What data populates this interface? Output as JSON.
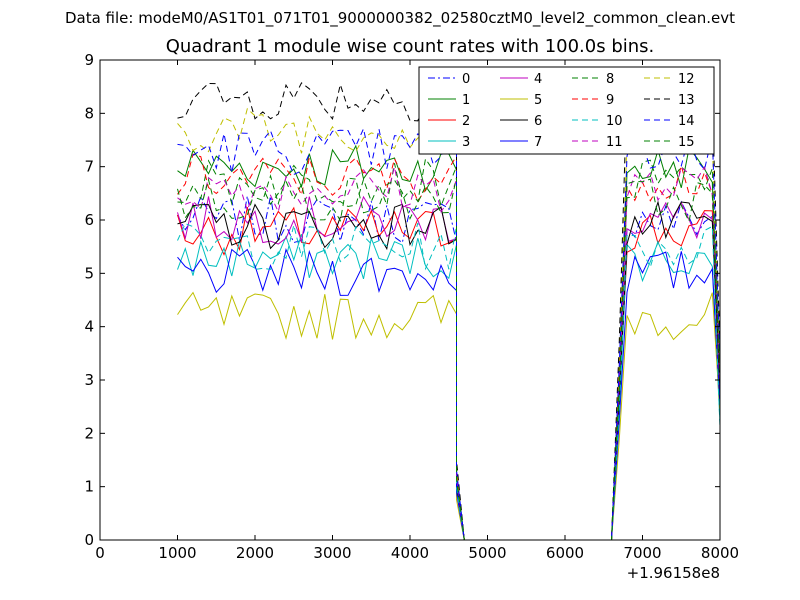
{
  "chart_data": {
    "type": "line",
    "suptitle": "Data file: modeM0/AS1T01_071T01_9000000382_02580cztM0_level2_common_clean.evt",
    "title": "Quadrant 1 module wise count rates with 100.0s bins.",
    "xlabel": "",
    "ylabel": "",
    "xlim": [
      0,
      8000
    ],
    "ylim": [
      0,
      9
    ],
    "x_offset_label": "+1.96158e8",
    "xticks": [
      "0",
      "1000",
      "2000",
      "3000",
      "4000",
      "5000",
      "6000",
      "7000",
      "8000"
    ],
    "yticks": [
      "0",
      "1",
      "2",
      "3",
      "4",
      "5",
      "6",
      "7",
      "8",
      "9"
    ],
    "grid": false,
    "legend_position": "top-right",
    "segments": [
      {
        "x_start": 1000,
        "x_step": 100,
        "count": 37
      },
      {
        "x_start": 6800,
        "x_step": 100,
        "count": 12
      }
    ],
    "gap": {
      "x": [
        4600,
        4700,
        4800,
        6600,
        6700
      ],
      "y_fraction": [
        0.18,
        0.0,
        0.0,
        0.0,
        0.45
      ]
    },
    "series": [
      {
        "name": "0",
        "color": "#0000ff",
        "dash": "dashdot",
        "level": 6.0,
        "end": 2.6
      },
      {
        "name": "1",
        "color": "#008000",
        "dash": "solid",
        "level": 7.0,
        "end": 3.2
      },
      {
        "name": "2",
        "color": "#ff0000",
        "dash": "solid",
        "level": 5.8,
        "end": 2.8
      },
      {
        "name": "3",
        "color": "#00bfbf",
        "dash": "solid",
        "level": 5.3,
        "end": 2.2
      },
      {
        "name": "4",
        "color": "#bf00bf",
        "dash": "solid",
        "level": 6.0,
        "end": 2.6
      },
      {
        "name": "5",
        "color": "#bfbf00",
        "dash": "solid",
        "level": 4.2,
        "end": 2.4
      },
      {
        "name": "6",
        "color": "#000000",
        "dash": "solid",
        "level": 5.9,
        "end": 2.8
      },
      {
        "name": "7",
        "color": "#0000ff",
        "dash": "solid",
        "level": 5.0,
        "end": 2.5
      },
      {
        "name": "8",
        "color": "#008000",
        "dash": "dashed",
        "level": 6.7,
        "end": 3.0
      },
      {
        "name": "9",
        "color": "#ff0000",
        "dash": "dashed",
        "level": 6.8,
        "end": 3.1
      },
      {
        "name": "10",
        "color": "#00bfbf",
        "dash": "dashed",
        "level": 5.5,
        "end": 2.1
      },
      {
        "name": "11",
        "color": "#bf00bf",
        "dash": "dashed",
        "level": 6.6,
        "end": 2.9
      },
      {
        "name": "12",
        "color": "#bfbf00",
        "dash": "dashed",
        "level": 7.7,
        "end": 3.4
      },
      {
        "name": "13",
        "color": "#000000",
        "dash": "dashed",
        "level": 8.3,
        "end": 3.6
      },
      {
        "name": "14",
        "color": "#0000ff",
        "dash": "dashed",
        "level": 7.3,
        "end": 3.3
      },
      {
        "name": "15",
        "color": "#008000",
        "dash": "dashed",
        "level": 6.4,
        "end": 3.0
      }
    ]
  }
}
